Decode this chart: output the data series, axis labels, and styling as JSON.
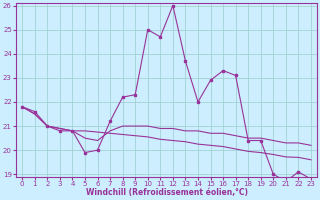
{
  "xlabel": "Windchill (Refroidissement éolien,°C)",
  "background_color": "#cceeff",
  "grid_color": "#99cccc",
  "line_color": "#993399",
  "x": [
    0,
    1,
    2,
    3,
    4,
    5,
    6,
    7,
    8,
    9,
    10,
    11,
    12,
    13,
    14,
    15,
    16,
    17,
    18,
    19,
    20,
    21,
    22,
    23
  ],
  "line1": [
    21.8,
    21.6,
    21.0,
    20.8,
    20.8,
    19.9,
    20.0,
    21.2,
    22.2,
    22.3,
    25.0,
    24.7,
    26.0,
    23.7,
    22.0,
    22.9,
    23.3,
    23.1,
    20.4,
    20.4,
    19.0,
    18.7,
    19.1,
    18.8
  ],
  "line2": [
    21.8,
    21.5,
    21.0,
    20.9,
    20.8,
    20.8,
    20.75,
    20.7,
    20.65,
    20.6,
    20.55,
    20.45,
    20.4,
    20.35,
    20.25,
    20.2,
    20.15,
    20.05,
    19.95,
    19.9,
    19.82,
    19.72,
    19.7,
    19.6
  ],
  "line3": [
    21.8,
    21.5,
    21.0,
    20.9,
    20.8,
    20.5,
    20.4,
    20.8,
    21.0,
    21.0,
    21.0,
    20.9,
    20.9,
    20.8,
    20.8,
    20.7,
    20.7,
    20.6,
    20.5,
    20.5,
    20.4,
    20.3,
    20.3,
    20.2
  ],
  "ylim_min": 19,
  "ylim_max": 26,
  "yticks": [
    19,
    20,
    21,
    22,
    23,
    24,
    25,
    26
  ],
  "xticks": [
    0,
    1,
    2,
    3,
    4,
    5,
    6,
    7,
    8,
    9,
    10,
    11,
    12,
    13,
    14,
    15,
    16,
    17,
    18,
    19,
    20,
    21,
    22,
    23
  ],
  "marker": "s",
  "markersize": 2.0,
  "linewidth": 0.8,
  "tick_labelsize": 5,
  "xlabel_fontsize": 5.5
}
